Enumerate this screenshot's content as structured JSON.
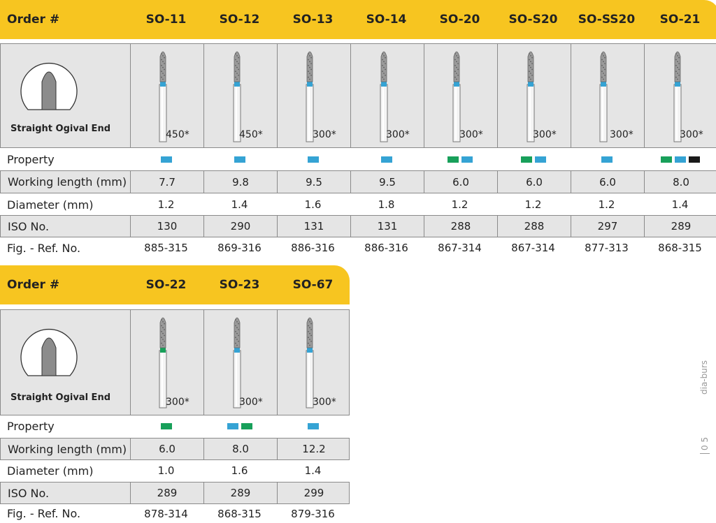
{
  "colors": {
    "blue": "#35a3d4",
    "green": "#18a05a",
    "black": "#1a1a1a",
    "header": "#f7c520"
  },
  "side_label": "dia-burs",
  "page_number": "0 5",
  "tables": [
    {
      "header_label": "Order #",
      "profile_label": "Straight Ogival End",
      "row_labels": {
        "property": "Property",
        "working_length": "Working length (mm)",
        "diameter": "Diameter (mm)",
        "iso": "ISO No.",
        "ref": "Fig. - Ref. No."
      },
      "columns": [
        {
          "order": "SO-11",
          "speed": "450*",
          "property": [
            "blue"
          ],
          "working_length": "7.7",
          "diameter": "1.2",
          "iso": "130",
          "ref": "885-315",
          "grit": "blue"
        },
        {
          "order": "SO-12",
          "speed": "450*",
          "property": [
            "blue"
          ],
          "working_length": "9.8",
          "diameter": "1.4",
          "iso": "290",
          "ref": "869-316",
          "grit": "blue"
        },
        {
          "order": "SO-13",
          "speed": "300*",
          "property": [
            "blue"
          ],
          "working_length": "9.5",
          "diameter": "1.6",
          "iso": "131",
          "ref": "886-316",
          "grit": "blue"
        },
        {
          "order": "SO-14",
          "speed": "300*",
          "property": [
            "blue"
          ],
          "working_length": "9.5",
          "diameter": "1.8",
          "iso": "131",
          "ref": "886-316",
          "grit": "blue"
        },
        {
          "order": "SO-20",
          "speed": "300*",
          "property": [
            "green",
            "blue"
          ],
          "working_length": "6.0",
          "diameter": "1.2",
          "iso": "288",
          "ref": "867-314",
          "grit": "blue"
        },
        {
          "order": "SO-S20",
          "speed": "300*",
          "property": [
            "green",
            "blue"
          ],
          "working_length": "6.0",
          "diameter": "1.2",
          "iso": "288",
          "ref": "867-314",
          "grit": "blue"
        },
        {
          "order": "SO-SS20",
          "speed": "300*",
          "property": [
            "blue"
          ],
          "working_length": "6.0",
          "diameter": "1.2",
          "iso": "297",
          "ref": "877-313",
          "grit": "blue"
        },
        {
          "order": "SO-21",
          "speed": "300*",
          "property": [
            "green",
            "blue",
            "black"
          ],
          "working_length": "8.0",
          "diameter": "1.4",
          "iso": "289",
          "ref": "868-315",
          "grit": "blue"
        }
      ]
    },
    {
      "header_label": "Order #",
      "profile_label": "Straight Ogival End",
      "row_labels": {
        "property": "Property",
        "working_length": "Working length (mm)",
        "diameter": "Diameter (mm)",
        "iso": "ISO No.",
        "ref": "Fig. - Ref. No."
      },
      "columns": [
        {
          "order": "SO-22",
          "speed": "300*",
          "property": [
            "green"
          ],
          "working_length": "6.0",
          "diameter": "1.0",
          "iso": "289",
          "ref": "878-314",
          "grit": "green"
        },
        {
          "order": "SO-23",
          "speed": "300*",
          "property": [
            "blue",
            "green"
          ],
          "working_length": "8.0",
          "diameter": "1.6",
          "iso": "289",
          "ref": "868-315",
          "grit": "blue"
        },
        {
          "order": "SO-67",
          "speed": "300*",
          "property": [
            "blue"
          ],
          "working_length": "12.2",
          "diameter": "1.4",
          "iso": "299",
          "ref": "879-316",
          "grit": "blue"
        }
      ]
    }
  ]
}
